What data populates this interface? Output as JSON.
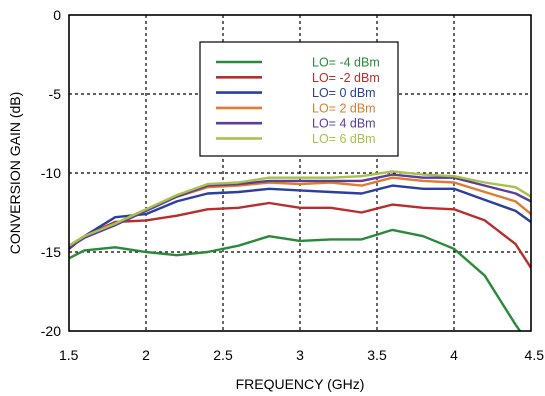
{
  "chart_data": {
    "type": "line",
    "xlabel": "FREQUENCY (GHz)",
    "ylabel": "CONVERSION GAIN (dB)",
    "xlim": [
      1.5,
      4.5
    ],
    "ylim": [
      -20,
      0
    ],
    "xticks": [
      "1.5",
      "2",
      "2.5",
      "3",
      "3.5",
      "4",
      "4.5"
    ],
    "yticks": [
      "0",
      "-5",
      "-10",
      "-15",
      "-20"
    ],
    "grid": true,
    "legend_position": "top-center",
    "series": [
      {
        "name": "LO= -4 dBm",
        "color": "#2a8a3a",
        "x": [
          1.5,
          1.6,
          1.8,
          2.0,
          2.2,
          2.4,
          2.6,
          2.8,
          3.0,
          3.2,
          3.4,
          3.6,
          3.8,
          4.0,
          4.2,
          4.4,
          4.5
        ],
        "y": [
          -15.4,
          -14.9,
          -14.7,
          -15.0,
          -15.2,
          -15.0,
          -14.6,
          -14.0,
          -14.3,
          -14.2,
          -14.2,
          -13.6,
          -14.0,
          -14.8,
          -16.5,
          -19.6,
          -21.0
        ]
      },
      {
        "name": "LO= -2 dBm",
        "color": "#b82e2e",
        "x": [
          1.5,
          1.6,
          1.8,
          2.0,
          2.2,
          2.4,
          2.6,
          2.8,
          3.0,
          3.2,
          3.4,
          3.6,
          3.8,
          4.0,
          4.2,
          4.4,
          4.5
        ],
        "y": [
          -14.8,
          -14.0,
          -13.1,
          -13.0,
          -12.7,
          -12.3,
          -12.2,
          -11.9,
          -12.2,
          -12.2,
          -12.5,
          -12.0,
          -12.2,
          -12.3,
          -13.0,
          -14.5,
          -16.0
        ]
      },
      {
        "name": "LO= 0 dBm",
        "color": "#2b3f9e",
        "x": [
          1.5,
          1.6,
          1.8,
          2.0,
          2.2,
          2.4,
          2.6,
          2.8,
          3.0,
          3.2,
          3.4,
          3.6,
          3.8,
          4.0,
          4.2,
          4.4,
          4.5
        ],
        "y": [
          -14.8,
          -14.0,
          -12.8,
          -12.6,
          -11.8,
          -11.3,
          -11.2,
          -11.0,
          -11.1,
          -11.2,
          -11.3,
          -10.8,
          -11.0,
          -11.0,
          -11.7,
          -12.4,
          -13.1
        ]
      },
      {
        "name": "LO= 2 dBm",
        "color": "#e07b30",
        "x": [
          1.5,
          1.6,
          1.8,
          2.0,
          2.2,
          2.4,
          2.6,
          2.8,
          3.0,
          3.2,
          3.4,
          3.6,
          3.8,
          4.0,
          4.2,
          4.4,
          4.5
        ],
        "y": [
          -14.6,
          -14.0,
          -13.2,
          -12.3,
          -11.5,
          -10.9,
          -10.8,
          -10.6,
          -10.7,
          -10.6,
          -10.8,
          -10.3,
          -10.5,
          -10.6,
          -11.2,
          -11.8,
          -12.6
        ]
      },
      {
        "name": "LO= 4 dBm",
        "color": "#5c3d99",
        "x": [
          1.5,
          1.6,
          1.8,
          2.0,
          2.2,
          2.4,
          2.6,
          2.8,
          3.0,
          3.2,
          3.4,
          3.6,
          3.8,
          4.0,
          4.2,
          4.4,
          4.5
        ],
        "y": [
          -14.7,
          -14.1,
          -13.3,
          -12.4,
          -11.5,
          -10.8,
          -10.7,
          -10.5,
          -10.5,
          -10.5,
          -10.5,
          -10.1,
          -10.3,
          -10.3,
          -10.8,
          -11.3,
          -11.8
        ]
      },
      {
        "name": "LO= 6 dBm",
        "color": "#a6c24a",
        "x": [
          1.5,
          1.6,
          1.8,
          2.0,
          2.2,
          2.4,
          2.6,
          2.8,
          3.0,
          3.2,
          3.4,
          3.6,
          3.8,
          4.0,
          4.2,
          4.4,
          4.5
        ],
        "y": [
          -14.6,
          -14.0,
          -13.2,
          -12.3,
          -11.4,
          -10.7,
          -10.6,
          -10.3,
          -10.3,
          -10.3,
          -10.2,
          -9.9,
          -10.1,
          -10.2,
          -10.6,
          -10.9,
          -11.5
        ]
      }
    ]
  }
}
